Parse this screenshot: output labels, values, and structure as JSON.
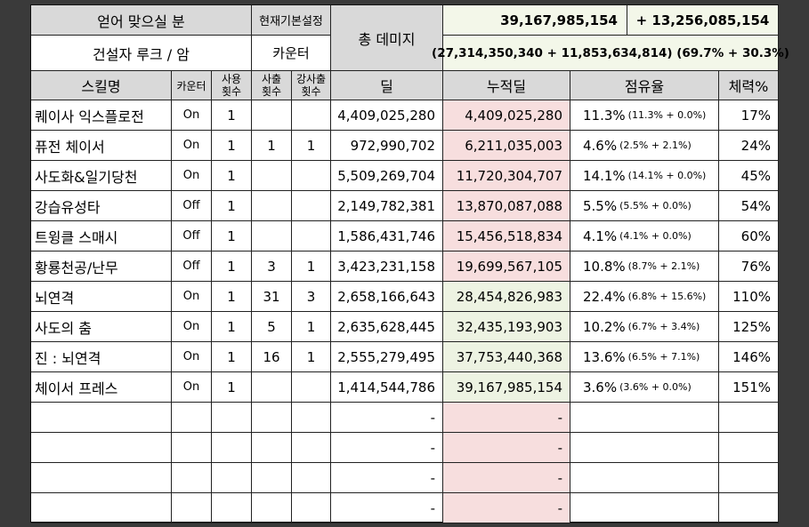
{
  "header": {
    "lost_minutes_label": "얻어 맞으실 분",
    "current_setting_label": "현재기본설정",
    "total_damage_label": "총 데미지",
    "total_damage_value": "39,167,985,154",
    "total_damage_bonus": "+ 13,256,085,154",
    "class_label": "건설자 루크 / 암",
    "counter_label": "카운터",
    "breakdown": "(27,314,350,340 + 11,853,634,814) (69.7% + 30.3%)"
  },
  "columns": {
    "skill": "스킬명",
    "counter": "카운터",
    "uses": "사용\n횟수",
    "hits": "사출\n횟수",
    "strong_hits": "강사출\n횟수",
    "damage": "딜",
    "cumulative": "누적딜",
    "share": "점유율",
    "hp": "체력%"
  },
  "rows": [
    {
      "skill": "퀘이사 익스플로전",
      "counter": "On",
      "uses": "1",
      "hits": "",
      "strong": "",
      "damage": "4,409,025,280",
      "cumulative": "4,409,025,280",
      "share": "11.3%",
      "share_detail": "(11.3% + 0.0%)",
      "hp": "17%"
    },
    {
      "skill": "퓨전 체이서",
      "counter": "On",
      "uses": "1",
      "hits": "1",
      "strong": "1",
      "damage": "972,990,702",
      "cumulative": "6,211,035,003",
      "share": "4.6%",
      "share_detail": "(2.5% + 2.1%)",
      "hp": "24%"
    },
    {
      "skill": "사도화&일기당천",
      "counter": "On",
      "uses": "1",
      "hits": "",
      "strong": "",
      "damage": "5,509,269,704",
      "cumulative": "11,720,304,707",
      "share": "14.1%",
      "share_detail": "(14.1% + 0.0%)",
      "hp": "45%"
    },
    {
      "skill": "강습유성타",
      "counter": "Off",
      "uses": "1",
      "hits": "",
      "strong": "",
      "damage": "2,149,782,381",
      "cumulative": "13,870,087,088",
      "share": "5.5%",
      "share_detail": "(5.5% + 0.0%)",
      "hp": "54%"
    },
    {
      "skill": "트윙클 스매시",
      "counter": "Off",
      "uses": "1",
      "hits": "",
      "strong": "",
      "damage": "1,586,431,746",
      "cumulative": "15,456,518,834",
      "share": "4.1%",
      "share_detail": "(4.1% + 0.0%)",
      "hp": "60%"
    },
    {
      "skill": "황룡천공/난무",
      "counter": "Off",
      "uses": "1",
      "hits": "3",
      "strong": "1",
      "damage": "3,423,231,158",
      "cumulative": "19,699,567,105",
      "share": "10.8%",
      "share_detail": "(8.7% + 2.1%)",
      "hp": "76%"
    },
    {
      "skill": "뇌연격",
      "counter": "On",
      "uses": "1",
      "hits": "31",
      "strong": "3",
      "damage": "2,658,166,643",
      "cumulative": "28,454,826,983",
      "share": "22.4%",
      "share_detail": "(6.8% + 15.6%)",
      "hp": "110%"
    },
    {
      "skill": "사도의 춤",
      "counter": "On",
      "uses": "1",
      "hits": "5",
      "strong": "1",
      "damage": "2,635,628,445",
      "cumulative": "32,435,193,903",
      "share": "10.2%",
      "share_detail": "(6.7% + 3.4%)",
      "hp": "125%"
    },
    {
      "skill": "진 : 뇌연격",
      "counter": "On",
      "uses": "1",
      "hits": "16",
      "strong": "1",
      "damage": "2,555,279,495",
      "cumulative": "37,753,440,368",
      "share": "13.6%",
      "share_detail": "(6.5% + 7.1%)",
      "hp": "146%"
    },
    {
      "skill": "체이서 프레스",
      "counter": "On",
      "uses": "1",
      "hits": "",
      "strong": "",
      "damage": "1,414,544,786",
      "cumulative": "39,167,985,154",
      "share": "3.6%",
      "share_detail": "(3.6% + 0.0%)",
      "hp": "151%"
    },
    {
      "skill": "",
      "counter": "",
      "uses": "",
      "hits": "",
      "strong": "",
      "damage": "-",
      "cumulative": "-",
      "share": "",
      "share_detail": "",
      "hp": ""
    },
    {
      "skill": "",
      "counter": "",
      "uses": "",
      "hits": "",
      "strong": "",
      "damage": "-",
      "cumulative": "-",
      "share": "",
      "share_detail": "",
      "hp": ""
    },
    {
      "skill": "",
      "counter": "",
      "uses": "",
      "hits": "",
      "strong": "",
      "damage": "-",
      "cumulative": "-",
      "share": "",
      "share_detail": "",
      "hp": ""
    },
    {
      "skill": "",
      "counter": "",
      "uses": "",
      "hits": "",
      "strong": "",
      "damage": "-",
      "cumulative": "-",
      "share": "",
      "share_detail": "",
      "hp": ""
    }
  ],
  "colors": {
    "header_gray": "#d9d9d9",
    "cumulative_pink": "#f7dede",
    "cumulative_green": "#edf3e2",
    "total_bg": "#f3f7e9"
  }
}
